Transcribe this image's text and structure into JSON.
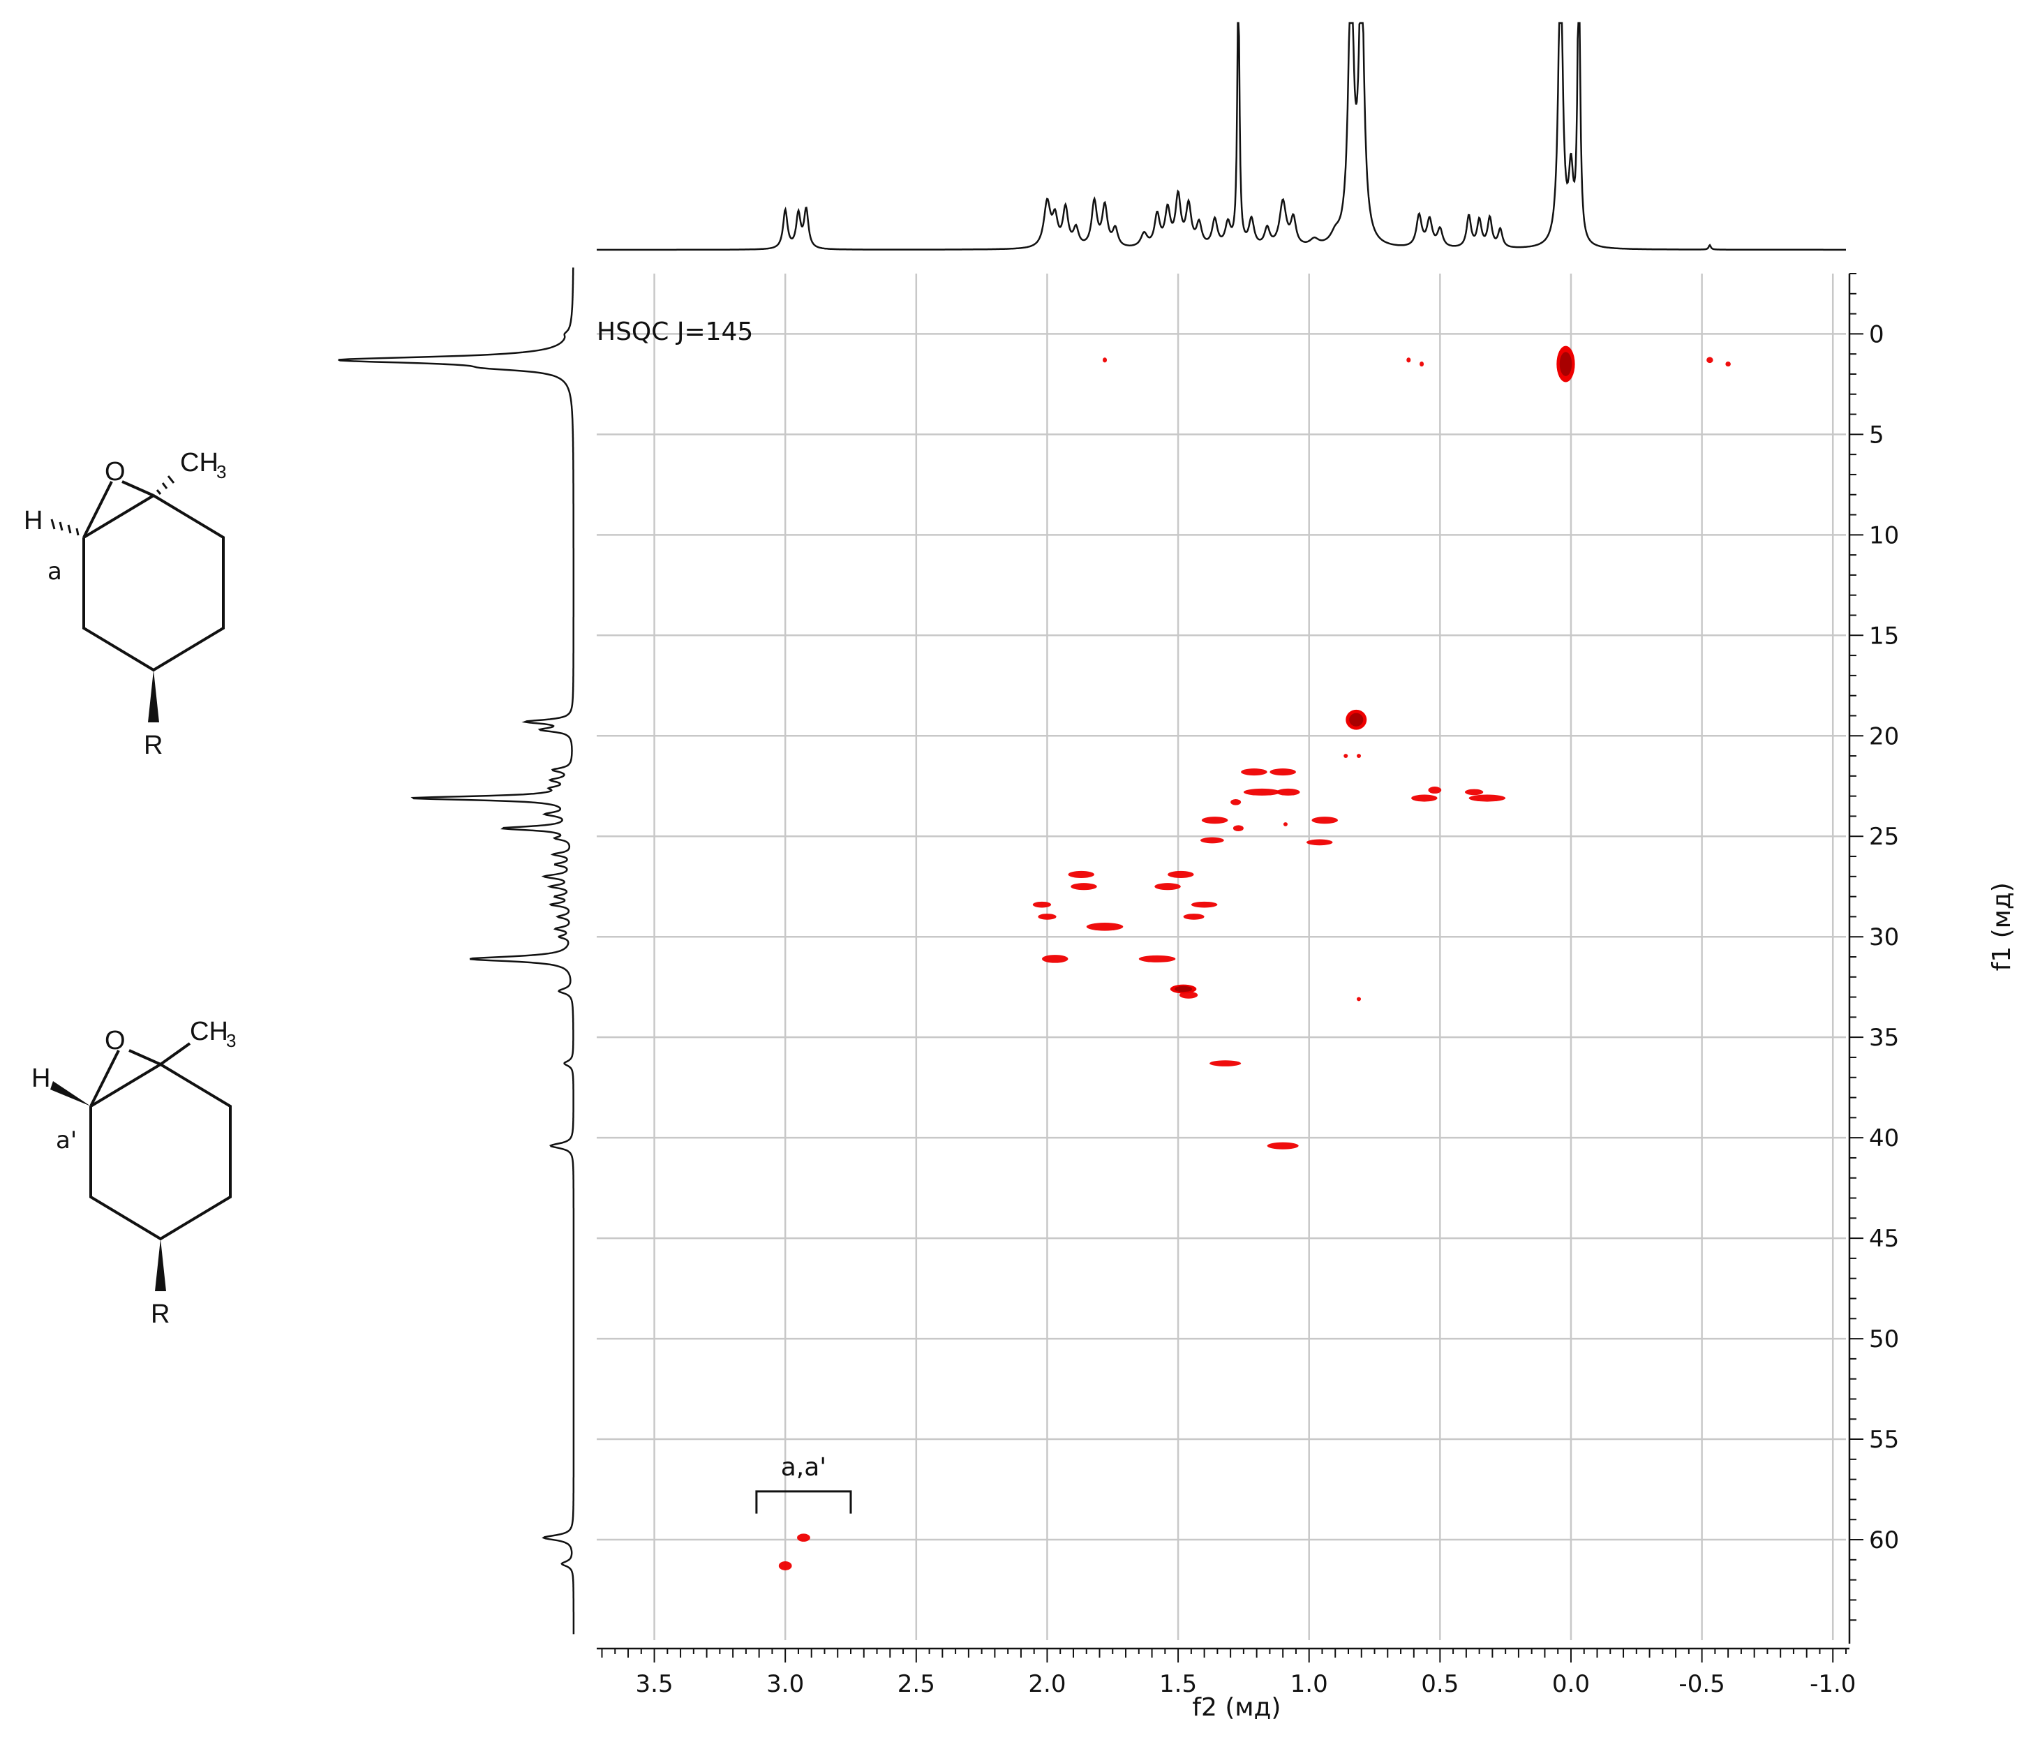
{
  "chart_data": {
    "type": "heatmap",
    "experiment_label": "HSQC J=145",
    "x_axis": {
      "label": "f2 (мд)",
      "range": [
        3.72,
        -1.05
      ],
      "reversed": true,
      "ticks": [
        3.5,
        3.0,
        2.5,
        2.0,
        1.5,
        1.0,
        0.5,
        0.0,
        -0.5,
        -1.0
      ],
      "tick_labels": [
        "3.5",
        "3.0",
        "2.5",
        "2.0",
        "1.5",
        "1.0",
        "0.5",
        "0.0",
        "-0.5",
        "-1.0"
      ]
    },
    "y_axis": {
      "label": "f1 (мд)",
      "range": [
        -3,
        65
      ],
      "reversed": true,
      "position": "right",
      "ticks": [
        0,
        5,
        10,
        15,
        20,
        25,
        30,
        35,
        40,
        45,
        50,
        55,
        60
      ],
      "tick_labels": [
        "0",
        "5",
        "10",
        "15",
        "20",
        "25",
        "30",
        "35",
        "40",
        "45",
        "50",
        "55",
        "60"
      ]
    },
    "grid": true,
    "cross_peak_color": "#ee0000",
    "cross_peaks": [
      {
        "x": 0.02,
        "y": 1.5,
        "w": 0.07,
        "h": 1.8,
        "dense": true
      },
      {
        "x": 1.78,
        "y": 1.3,
        "w": 0.015,
        "h": 0.25
      },
      {
        "x": 0.62,
        "y": 1.3,
        "w": 0.015,
        "h": 0.25
      },
      {
        "x": 0.57,
        "y": 1.5,
        "w": 0.015,
        "h": 0.25
      },
      {
        "x": -0.53,
        "y": 1.3,
        "w": 0.025,
        "h": 0.3
      },
      {
        "x": -0.6,
        "y": 1.5,
        "w": 0.02,
        "h": 0.25
      },
      {
        "x": 0.82,
        "y": 19.2,
        "w": 0.08,
        "h": 1.0,
        "dense": true
      },
      {
        "x": 0.86,
        "y": 21.0,
        "w": 0.01,
        "h": 0.2
      },
      {
        "x": 0.81,
        "y": 21.0,
        "w": 0.01,
        "h": 0.2
      },
      {
        "x": 1.21,
        "y": 21.8,
        "w": 0.1,
        "h": 0.35
      },
      {
        "x": 1.1,
        "y": 21.8,
        "w": 0.1,
        "h": 0.35
      },
      {
        "x": 1.18,
        "y": 22.8,
        "w": 0.14,
        "h": 0.35
      },
      {
        "x": 1.08,
        "y": 22.8,
        "w": 0.09,
        "h": 0.35
      },
      {
        "x": 0.52,
        "y": 22.7,
        "w": 0.05,
        "h": 0.35
      },
      {
        "x": 0.56,
        "y": 23.1,
        "w": 0.1,
        "h": 0.35
      },
      {
        "x": 0.37,
        "y": 22.8,
        "w": 0.07,
        "h": 0.3
      },
      {
        "x": 0.32,
        "y": 23.1,
        "w": 0.14,
        "h": 0.35
      },
      {
        "x": 1.28,
        "y": 23.3,
        "w": 0.04,
        "h": 0.3
      },
      {
        "x": 1.36,
        "y": 24.2,
        "w": 0.1,
        "h": 0.35
      },
      {
        "x": 0.94,
        "y": 24.2,
        "w": 0.1,
        "h": 0.35
      },
      {
        "x": 1.27,
        "y": 24.6,
        "w": 0.04,
        "h": 0.3
      },
      {
        "x": 1.09,
        "y": 24.4,
        "w": 0.01,
        "h": 0.2
      },
      {
        "x": 1.37,
        "y": 25.2,
        "w": 0.09,
        "h": 0.3
      },
      {
        "x": 0.96,
        "y": 25.3,
        "w": 0.1,
        "h": 0.3
      },
      {
        "x": 1.87,
        "y": 26.9,
        "w": 0.1,
        "h": 0.35
      },
      {
        "x": 1.49,
        "y": 26.9,
        "w": 0.1,
        "h": 0.35
      },
      {
        "x": 1.86,
        "y": 27.5,
        "w": 0.1,
        "h": 0.35
      },
      {
        "x": 1.54,
        "y": 27.5,
        "w": 0.1,
        "h": 0.35
      },
      {
        "x": 2.02,
        "y": 28.4,
        "w": 0.07,
        "h": 0.3
      },
      {
        "x": 1.4,
        "y": 28.4,
        "w": 0.1,
        "h": 0.3
      },
      {
        "x": 2.0,
        "y": 29.0,
        "w": 0.07,
        "h": 0.3
      },
      {
        "x": 1.44,
        "y": 29.0,
        "w": 0.08,
        "h": 0.3
      },
      {
        "x": 1.78,
        "y": 29.5,
        "w": 0.14,
        "h": 0.4
      },
      {
        "x": 1.97,
        "y": 31.1,
        "w": 0.1,
        "h": 0.4
      },
      {
        "x": 1.58,
        "y": 31.1,
        "w": 0.14,
        "h": 0.35
      },
      {
        "x": 1.48,
        "y": 32.6,
        "w": 0.1,
        "h": 0.45,
        "dense": true
      },
      {
        "x": 1.46,
        "y": 32.9,
        "w": 0.07,
        "h": 0.35
      },
      {
        "x": 0.81,
        "y": 33.1,
        "w": 0.01,
        "h": 0.2
      },
      {
        "x": 1.32,
        "y": 36.3,
        "w": 0.12,
        "h": 0.3
      },
      {
        "x": 1.1,
        "y": 40.4,
        "w": 0.12,
        "h": 0.35
      },
      {
        "x": 2.93,
        "y": 59.9,
        "w": 0.05,
        "h": 0.4
      },
      {
        "x": 3.0,
        "y": 61.3,
        "w": 0.05,
        "h": 0.45
      }
    ],
    "annotations": [
      {
        "text": "a,a'",
        "x_center": 2.93,
        "y": 56.8,
        "bracket_x": [
          3.11,
          2.75
        ],
        "bracket_y": 57.6,
        "bracket_y_end": 58.7
      }
    ],
    "f2_projection": {
      "lines": [
        {
          "center": 3.0,
          "amp": 0.17,
          "width": 0.01
        },
        {
          "center": 2.95,
          "amp": 0.15,
          "width": 0.01
        },
        {
          "center": 2.92,
          "amp": 0.17,
          "width": 0.01
        },
        {
          "center": 2.0,
          "amp": 0.2,
          "width": 0.015
        },
        {
          "center": 1.97,
          "amp": 0.12,
          "width": 0.012
        },
        {
          "center": 1.93,
          "amp": 0.17,
          "width": 0.012
        },
        {
          "center": 1.89,
          "amp": 0.08,
          "width": 0.012
        },
        {
          "center": 1.82,
          "amp": 0.2,
          "width": 0.012
        },
        {
          "center": 1.78,
          "amp": 0.18,
          "width": 0.012
        },
        {
          "center": 1.74,
          "amp": 0.08,
          "width": 0.012
        },
        {
          "center": 1.63,
          "amp": 0.06,
          "width": 0.015
        },
        {
          "center": 1.58,
          "amp": 0.14,
          "width": 0.012
        },
        {
          "center": 1.54,
          "amp": 0.16,
          "width": 0.012
        },
        {
          "center": 1.5,
          "amp": 0.22,
          "width": 0.012
        },
        {
          "center": 1.46,
          "amp": 0.18,
          "width": 0.012
        },
        {
          "center": 1.42,
          "amp": 0.1,
          "width": 0.012
        },
        {
          "center": 1.36,
          "amp": 0.12,
          "width": 0.012
        },
        {
          "center": 1.31,
          "amp": 0.1,
          "width": 0.012
        },
        {
          "center": 1.27,
          "amp": 1.2,
          "width": 0.005
        },
        {
          "center": 1.22,
          "amp": 0.12,
          "width": 0.012
        },
        {
          "center": 1.16,
          "amp": 0.08,
          "width": 0.012
        },
        {
          "center": 1.1,
          "amp": 0.2,
          "width": 0.015
        },
        {
          "center": 1.06,
          "amp": 0.12,
          "width": 0.012
        },
        {
          "center": 0.98,
          "amp": 0.03,
          "width": 0.02
        },
        {
          "center": 0.9,
          "amp": 0.04,
          "width": 0.02
        },
        {
          "center": 0.84,
          "amp": 1.2,
          "width": 0.012
        },
        {
          "center": 0.8,
          "amp": 1.2,
          "width": 0.012
        },
        {
          "center": 0.58,
          "amp": 0.14,
          "width": 0.012
        },
        {
          "center": 0.54,
          "amp": 0.12,
          "width": 0.012
        },
        {
          "center": 0.5,
          "amp": 0.08,
          "width": 0.012
        },
        {
          "center": 0.39,
          "amp": 0.14,
          "width": 0.01
        },
        {
          "center": 0.35,
          "amp": 0.12,
          "width": 0.01
        },
        {
          "center": 0.31,
          "amp": 0.13,
          "width": 0.01
        },
        {
          "center": 0.27,
          "amp": 0.08,
          "width": 0.01
        },
        {
          "center": 0.04,
          "amp": 1.3,
          "width": 0.01
        },
        {
          "center": 0.0,
          "amp": 0.3,
          "width": 0.01
        },
        {
          "center": -0.03,
          "amp": 1.3,
          "width": 0.006
        },
        {
          "center": -0.53,
          "amp": 0.02,
          "width": 0.005
        }
      ]
    },
    "f1_projection": {
      "lines": [
        {
          "center": 0.0,
          "amp": 0.015,
          "width": 0.15
        },
        {
          "center": 1.3,
          "amp": 1.0,
          "width": 0.2
        },
        {
          "center": 1.7,
          "amp": 0.2,
          "width": 0.15
        },
        {
          "center": 19.3,
          "amp": 0.2,
          "width": 0.12
        },
        {
          "center": 19.7,
          "amp": 0.13,
          "width": 0.12
        },
        {
          "center": 21.7,
          "amp": 0.08,
          "width": 0.12
        },
        {
          "center": 22.2,
          "amp": 0.08,
          "width": 0.12
        },
        {
          "center": 22.6,
          "amp": 0.06,
          "width": 0.1
        },
        {
          "center": 23.1,
          "amp": 0.7,
          "width": 0.12
        },
        {
          "center": 23.9,
          "amp": 0.1,
          "width": 0.12
        },
        {
          "center": 24.6,
          "amp": 0.3,
          "width": 0.12
        },
        {
          "center": 25.1,
          "amp": 0.06,
          "width": 0.1
        },
        {
          "center": 25.9,
          "amp": 0.08,
          "width": 0.1
        },
        {
          "center": 26.4,
          "amp": 0.07,
          "width": 0.1
        },
        {
          "center": 27.0,
          "amp": 0.12,
          "width": 0.12
        },
        {
          "center": 27.5,
          "amp": 0.09,
          "width": 0.1
        },
        {
          "center": 28.0,
          "amp": 0.07,
          "width": 0.1
        },
        {
          "center": 28.4,
          "amp": 0.09,
          "width": 0.1
        },
        {
          "center": 29.0,
          "amp": 0.06,
          "width": 0.1
        },
        {
          "center": 29.6,
          "amp": 0.07,
          "width": 0.1
        },
        {
          "center": 30.0,
          "amp": 0.05,
          "width": 0.1
        },
        {
          "center": 31.1,
          "amp": 0.45,
          "width": 0.15
        },
        {
          "center": 32.7,
          "amp": 0.06,
          "width": 0.15
        },
        {
          "center": 36.3,
          "amp": 0.04,
          "width": 0.15
        },
        {
          "center": 40.4,
          "amp": 0.1,
          "width": 0.15
        },
        {
          "center": 59.9,
          "amp": 0.13,
          "width": 0.15
        },
        {
          "center": 61.2,
          "amp": 0.05,
          "width": 0.15
        }
      ]
    }
  },
  "structures": [
    {
      "oxygen": "O",
      "methyl": "CH",
      "methyl_sub": "3",
      "hydrogen": "H",
      "substituent": "R",
      "position_label": "a"
    },
    {
      "oxygen": "O",
      "methyl": "CH",
      "methyl_sub": "3",
      "hydrogen": "H",
      "substituent": "R",
      "position_label": "a'"
    }
  ]
}
